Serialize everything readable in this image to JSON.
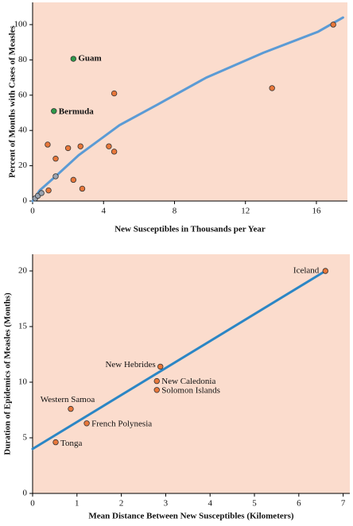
{
  "chart_data": [
    {
      "type": "scatter",
      "x_label": "New Susceptibles in Thousands per Year",
      "y_label": "Percent of Months with Cases of Measles",
      "xlim": [
        0,
        17.75
      ],
      "ylim": [
        0,
        112.6
      ],
      "xticks": [
        0,
        4,
        8,
        12,
        16
      ],
      "yticks": [
        0,
        20,
        40,
        60,
        80,
        100
      ],
      "background": "#fbdccd",
      "series": [
        {
          "color": "#e8773a",
          "x": [
            0.85,
            1.3,
            2.0,
            2.7,
            2.3,
            2.8,
            0.9,
            4.3,
            4.6,
            4.6,
            13.5,
            16.95
          ],
          "values": [
            32,
            24,
            30,
            31,
            12,
            7,
            6,
            31,
            28,
            61,
            64,
            100
          ]
        },
        {
          "color": "#9aa3b0",
          "x": [
            0.15,
            0.3,
            0.5,
            1.3
          ],
          "values": [
            1.5,
            3,
            4.5,
            14
          ]
        },
        {
          "color": "#2e9a4a",
          "label_color": "#2e8b3e",
          "x": [
            2.3,
            1.2
          ],
          "values": [
            80.6,
            51
          ],
          "labels": [
            "Guam",
            "Bermuda"
          ]
        }
      ],
      "fit": {
        "color": "#5b9bd5",
        "x": [
          0,
          0.4,
          1.3,
          2.6,
          4.9,
          7.1,
          9.8,
          13,
          16.1,
          17.5
        ],
        "values": [
          0,
          6,
          14,
          26,
          43,
          55,
          70,
          84,
          96,
          104
        ]
      }
    },
    {
      "type": "scatter",
      "x_label": "Mean Distance Between New Susceptibles (Kilometers)",
      "y_label": "Duration of Epidemics of Measles (Months)",
      "xlim": [
        0,
        7.15
      ],
      "ylim": [
        0,
        21.5
      ],
      "xticks": [
        0,
        1,
        2,
        3,
        4,
        5,
        6,
        7
      ],
      "yticks": [
        0,
        5,
        10,
        15,
        20
      ],
      "background": "#fbdccd",
      "series": [
        {
          "color": "#e8773a",
          "label_color": "#222",
          "x": [
            6.6,
            2.88,
            2.8,
            2.8,
            0.86,
            1.22,
            0.52
          ],
          "values": [
            20,
            11.4,
            10.1,
            9.3,
            7.6,
            6.3,
            4.6
          ],
          "labels": [
            "Iceland",
            "New Hebrides",
            "New Caledonia",
            "Solomon Islands",
            "Western Samoa",
            "French Polynesia",
            "Tonga"
          ]
        }
      ],
      "fit": {
        "color": "#2b86c5",
        "x": [
          0,
          6.6
        ],
        "values": [
          4,
          20
        ]
      }
    }
  ]
}
